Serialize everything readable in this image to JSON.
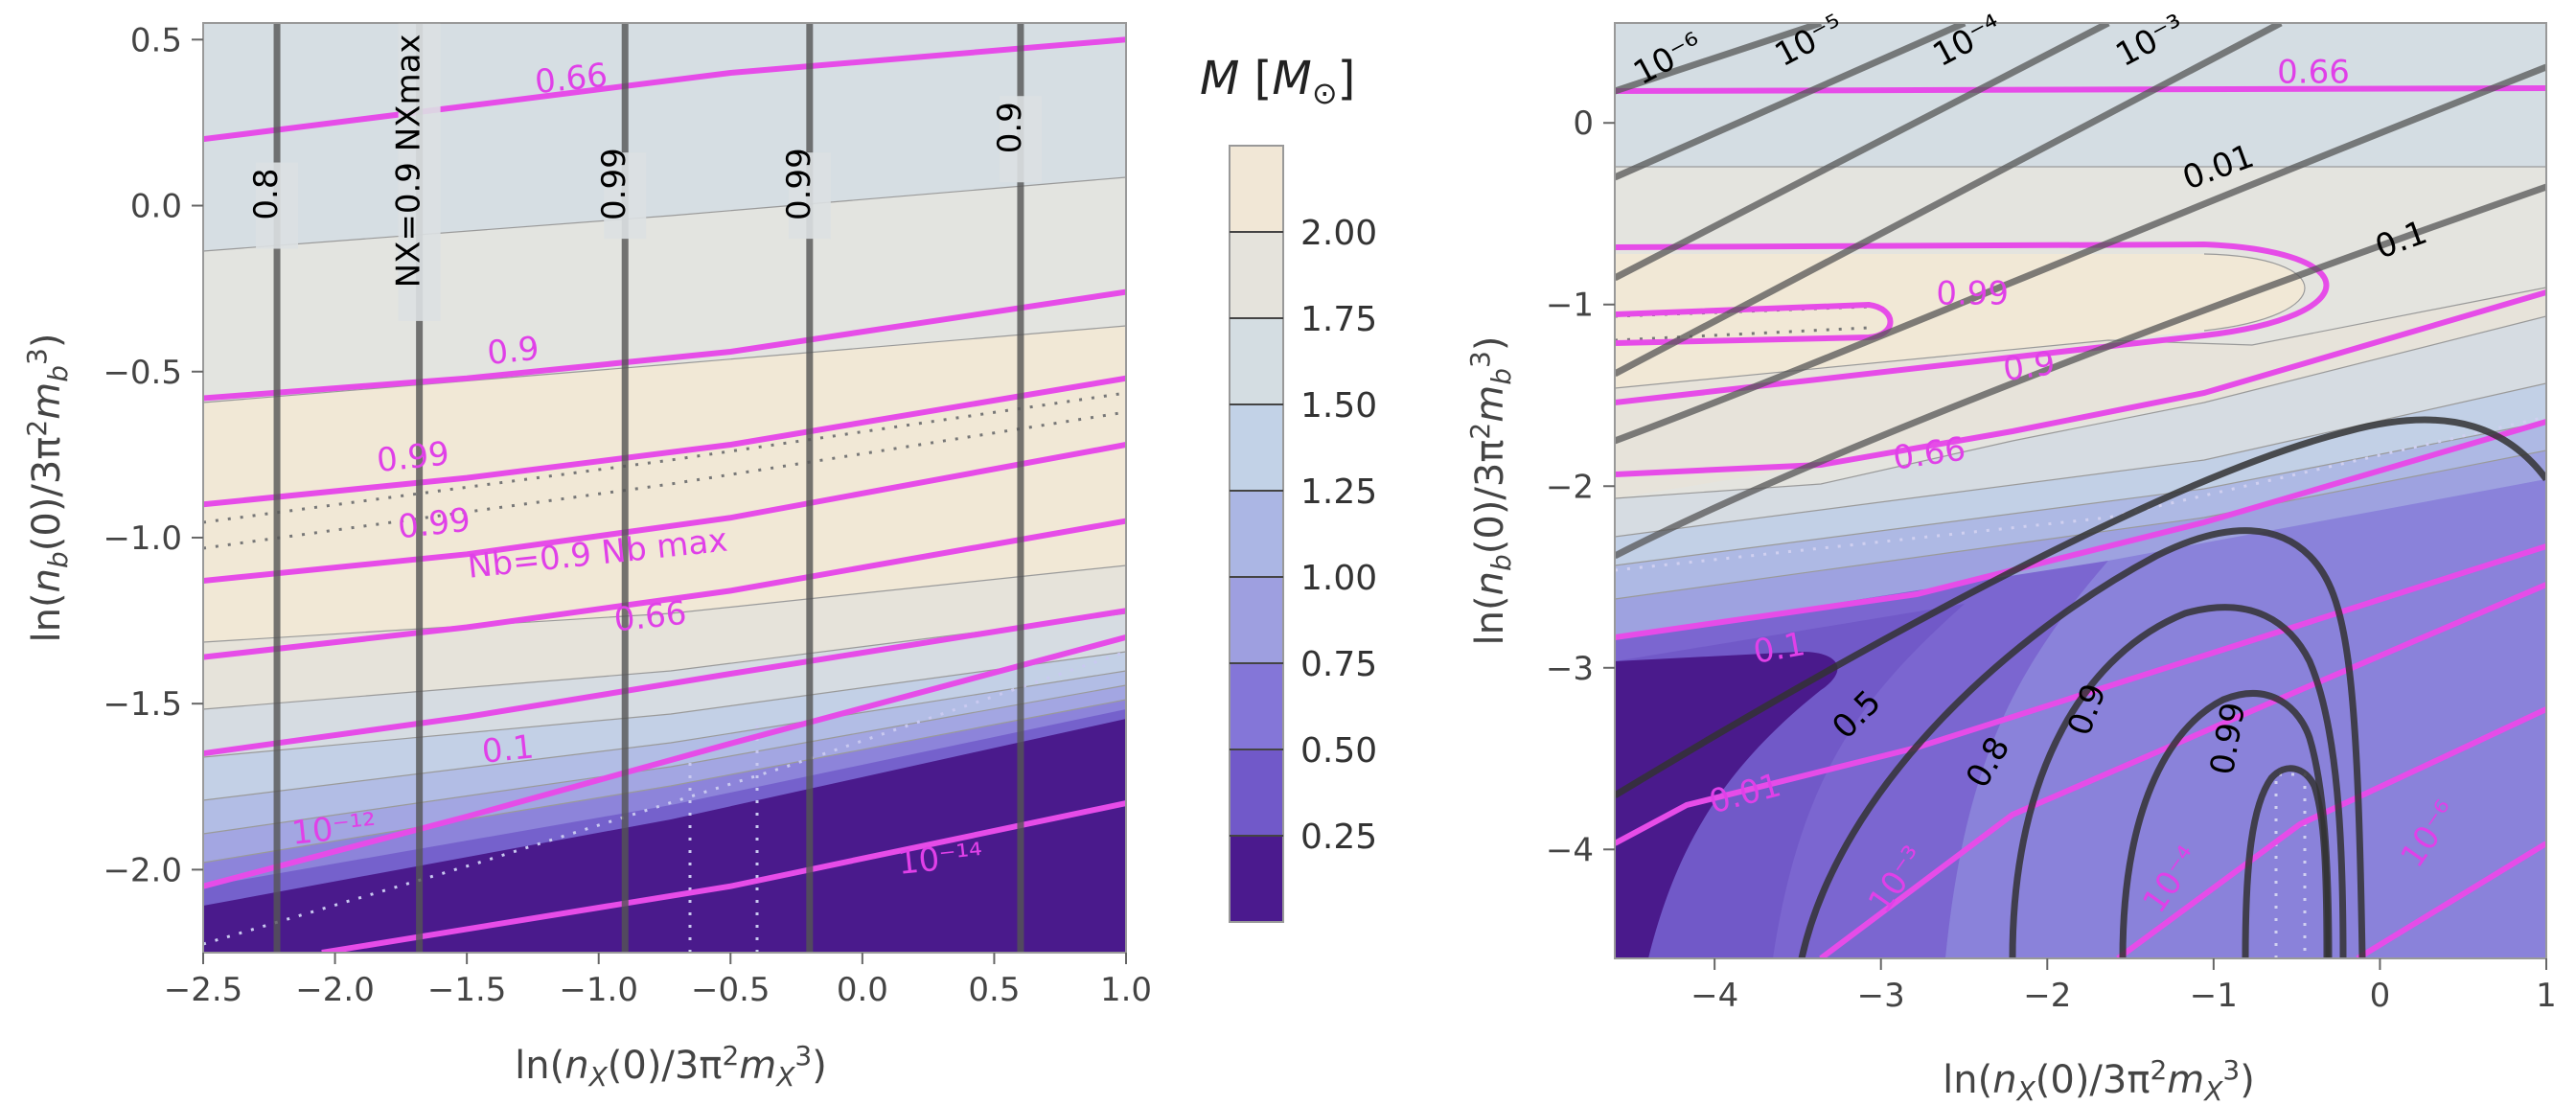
{
  "colors": {
    "magenta": "#e64ce8",
    "black_contour": "#555555",
    "band_labels_top_to_bottom": [
      "#f1e7d6",
      "#e5e3dc",
      "#d4dde2",
      "#c2d2e7",
      "#abb6e4",
      "#9e9fe0",
      "#8476d8",
      "#7159c9",
      "#4b1a8e"
    ]
  },
  "chart_data": [
    {
      "type": "contour",
      "name": "left-panel",
      "xlabel": "ln(n_X(0)/3π²m_X³)",
      "ylabel": "ln(n_b(0)/3π²m_b³)",
      "xlim": [
        -2.5,
        1.0
      ],
      "ylim": [
        -2.25,
        0.55
      ],
      "xticks": [
        "−2.5",
        "−2.0",
        "−1.5",
        "−1.0",
        "−0.5",
        "0.0",
        "0.5",
        "1.0"
      ],
      "yticks": [
        "0.5",
        "0.0",
        "−0.5",
        "−1.0",
        "−1.5",
        "−2.0"
      ],
      "vertical_contours_NX_over_NXmax": [
        {
          "x": -2.22,
          "label": "0.8"
        },
        {
          "x": -1.68,
          "label": "NX=0.9 NXmax"
        },
        {
          "x": -0.9,
          "label": "0.99"
        },
        {
          "x": -0.2,
          "label": "0.99"
        },
        {
          "x": 0.6,
          "label": "0.9"
        }
      ],
      "magenta_contours_Nb_over_Nbmax": [
        {
          "points": [
            [
              -2.5,
              0.2
            ],
            [
              -1.5,
              0.3
            ],
            [
              -0.5,
              0.4
            ],
            [
              1.0,
              0.5
            ]
          ],
          "label": "0.66",
          "label_at": [
            -1.1,
            0.35
          ]
        },
        {
          "points": [
            [
              -2.5,
              -0.58
            ],
            [
              -1.5,
              -0.52
            ],
            [
              -0.5,
              -0.44
            ],
            [
              1.0,
              -0.26
            ]
          ],
          "label": "0.9",
          "label_at": [
            -1.32,
            -0.47
          ]
        },
        {
          "points": [
            [
              -2.5,
              -0.9
            ],
            [
              -1.5,
              -0.82
            ],
            [
              -0.5,
              -0.72
            ],
            [
              1.0,
              -0.52
            ]
          ],
          "label": "0.99",
          "label_at": [
            -1.7,
            -0.79
          ]
        },
        {
          "points": [
            [
              -2.5,
              -1.13
            ],
            [
              -1.5,
              -1.05
            ],
            [
              -0.5,
              -0.94
            ],
            [
              1.0,
              -0.72
            ]
          ],
          "label": "0.99",
          "label_at": [
            -1.62,
            -0.99
          ]
        },
        {
          "points": [
            [
              -2.5,
              -1.36
            ],
            [
              -1.5,
              -1.27
            ],
            [
              -0.5,
              -1.16
            ],
            [
              1.0,
              -0.95
            ]
          ],
          "label": "0.66",
          "label_at": [
            -0.8,
            -1.27
          ]
        },
        {
          "points": [
            [
              -2.5,
              -1.65
            ],
            [
              -1.5,
              -1.54
            ],
            [
              -0.5,
              -1.41
            ],
            [
              1.0,
              -1.22
            ]
          ],
          "label": "0.1",
          "label_at": [
            -1.34,
            -1.67
          ]
        },
        {
          "points": [
            [
              -2.5,
              -2.05
            ],
            [
              -1.5,
              -1.84
            ],
            [
              -0.5,
              -1.62
            ],
            [
              1.0,
              -1.3
            ]
          ],
          "label": "10⁻¹²",
          "label_at": [
            -2.0,
            -1.91
          ]
        },
        {
          "points": [
            [
              -2.05,
              -2.25
            ],
            [
              -0.5,
              -2.05
            ],
            [
              1.0,
              -1.8
            ]
          ],
          "label": "10⁻¹⁴",
          "label_at": [
            0.3,
            -2.0
          ]
        }
      ],
      "annotation": "Nb=0.9 Nb max"
    },
    {
      "type": "contour",
      "name": "right-panel",
      "xlabel": "ln(n_X(0)/3π²m_X³)",
      "ylabel": "ln(n_b(0)/3π²m_b³)",
      "xlim": [
        -4.6,
        1.0
      ],
      "ylim": [
        -4.6,
        0.55
      ],
      "xticks": [
        "−4",
        "−3",
        "−2",
        "−1",
        "0",
        "1"
      ],
      "yticks": [
        "0",
        "−1",
        "−2",
        "−3",
        "−4"
      ],
      "black_contours_top_labels": [
        "10⁻⁶",
        "10⁻⁵",
        "10⁻⁴",
        "10⁻³",
        "0.01",
        "0.1"
      ],
      "black_contours_bottom_labels": [
        "0.5",
        "0.8",
        "0.9",
        "0.99"
      ],
      "magenta_top_labels": [
        "0.66",
        "0.99",
        "0.9",
        "0.66"
      ],
      "magenta_bottom_labels": [
        "0.1",
        "0.01",
        "10⁻³",
        "10⁻⁴",
        "10⁻⁶"
      ]
    }
  ],
  "colorbar": {
    "title": "M [M⊙]",
    "ticks": [
      "2.00",
      "1.75",
      "1.50",
      "1.25",
      "1.00",
      "0.75",
      "0.50",
      "0.25"
    ],
    "range": [
      0,
      2.25
    ]
  }
}
